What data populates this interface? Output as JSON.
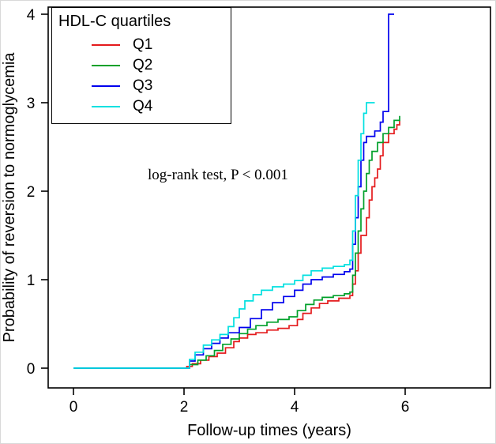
{
  "chart_data": {
    "type": "line",
    "step": true,
    "title": "",
    "xlabel": "Follow-up times (years)",
    "ylabel": "Probability of reversion to normoglycemia",
    "x_ticks": [
      0,
      2,
      4,
      6
    ],
    "y_ticks": [
      0,
      1,
      2,
      3,
      4
    ],
    "xlim": [
      -0.45,
      7.55
    ],
    "ylim": [
      -0.2,
      4.1
    ],
    "grid": false,
    "annotation": "log-rank test, P < 0.001",
    "legend": {
      "title": "HDL-C quartiles",
      "position": "top-left"
    },
    "axis_color": "#000000",
    "series": [
      {
        "name": "Q1",
        "color": "#e41a1c",
        "points": [
          [
            0,
            0
          ],
          [
            2.0,
            0
          ],
          [
            2.05,
            0.02
          ],
          [
            2.15,
            0.05
          ],
          [
            2.3,
            0.09
          ],
          [
            2.45,
            0.13
          ],
          [
            2.6,
            0.17
          ],
          [
            2.75,
            0.23
          ],
          [
            2.9,
            0.3
          ],
          [
            3.0,
            0.34
          ],
          [
            3.15,
            0.38
          ],
          [
            3.3,
            0.4
          ],
          [
            3.5,
            0.43
          ],
          [
            3.7,
            0.45
          ],
          [
            3.9,
            0.48
          ],
          [
            4.05,
            0.55
          ],
          [
            4.15,
            0.62
          ],
          [
            4.3,
            0.68
          ],
          [
            4.45,
            0.73
          ],
          [
            4.6,
            0.76
          ],
          [
            4.8,
            0.79
          ],
          [
            5.0,
            0.82
          ],
          [
            5.05,
            0.95
          ],
          [
            5.1,
            1.1
          ],
          [
            5.15,
            1.3
          ],
          [
            5.2,
            1.5
          ],
          [
            5.3,
            1.7
          ],
          [
            5.35,
            1.9
          ],
          [
            5.4,
            2.05
          ],
          [
            5.45,
            2.15
          ],
          [
            5.5,
            2.25
          ],
          [
            5.55,
            2.4
          ],
          [
            5.6,
            2.55
          ],
          [
            5.7,
            2.65
          ],
          [
            5.8,
            2.7
          ],
          [
            5.85,
            2.75
          ],
          [
            5.9,
            2.8
          ]
        ]
      },
      {
        "name": "Q2",
        "color": "#00a02a",
        "points": [
          [
            0,
            0
          ],
          [
            2.0,
            0
          ],
          [
            2.1,
            0.04
          ],
          [
            2.25,
            0.09
          ],
          [
            2.4,
            0.14
          ],
          [
            2.55,
            0.2
          ],
          [
            2.7,
            0.27
          ],
          [
            2.85,
            0.33
          ],
          [
            3.0,
            0.39
          ],
          [
            3.15,
            0.44
          ],
          [
            3.3,
            0.48
          ],
          [
            3.5,
            0.52
          ],
          [
            3.7,
            0.55
          ],
          [
            3.9,
            0.58
          ],
          [
            4.05,
            0.65
          ],
          [
            4.2,
            0.72
          ],
          [
            4.35,
            0.77
          ],
          [
            4.5,
            0.8
          ],
          [
            4.7,
            0.82
          ],
          [
            4.9,
            0.84
          ],
          [
            5.0,
            0.86
          ],
          [
            5.05,
            1.05
          ],
          [
            5.1,
            1.3
          ],
          [
            5.15,
            1.55
          ],
          [
            5.2,
            1.8
          ],
          [
            5.25,
            2.0
          ],
          [
            5.3,
            2.2
          ],
          [
            5.35,
            2.35
          ],
          [
            5.4,
            2.45
          ],
          [
            5.5,
            2.55
          ],
          [
            5.6,
            2.65
          ],
          [
            5.7,
            2.72
          ],
          [
            5.8,
            2.8
          ],
          [
            5.9,
            2.85
          ]
        ]
      },
      {
        "name": "Q3",
        "color": "#0000ee",
        "points": [
          [
            0,
            0
          ],
          [
            2.0,
            0
          ],
          [
            2.1,
            0.08
          ],
          [
            2.2,
            0.15
          ],
          [
            2.35,
            0.22
          ],
          [
            2.5,
            0.28
          ],
          [
            2.65,
            0.34
          ],
          [
            2.8,
            0.4
          ],
          [
            3.0,
            0.46
          ],
          [
            3.2,
            0.56
          ],
          [
            3.4,
            0.66
          ],
          [
            3.6,
            0.74
          ],
          [
            3.8,
            0.81
          ],
          [
            4.0,
            0.88
          ],
          [
            4.15,
            0.95
          ],
          [
            4.3,
            1.0
          ],
          [
            4.5,
            1.03
          ],
          [
            4.7,
            1.06
          ],
          [
            4.9,
            1.09
          ],
          [
            5.0,
            1.12
          ],
          [
            5.05,
            1.4
          ],
          [
            5.1,
            1.7
          ],
          [
            5.15,
            2.05
          ],
          [
            5.2,
            2.35
          ],
          [
            5.25,
            2.55
          ],
          [
            5.3,
            2.62
          ],
          [
            5.45,
            2.68
          ],
          [
            5.55,
            2.78
          ],
          [
            5.6,
            2.9
          ],
          [
            5.7,
            4.0
          ],
          [
            5.8,
            4.0
          ]
        ]
      },
      {
        "name": "Q4",
        "color": "#00e0e0",
        "points": [
          [
            0,
            0
          ],
          [
            2.0,
            0
          ],
          [
            2.1,
            0.1
          ],
          [
            2.2,
            0.18
          ],
          [
            2.35,
            0.26
          ],
          [
            2.5,
            0.32
          ],
          [
            2.65,
            0.38
          ],
          [
            2.8,
            0.47
          ],
          [
            2.9,
            0.57
          ],
          [
            3.0,
            0.67
          ],
          [
            3.1,
            0.76
          ],
          [
            3.25,
            0.83
          ],
          [
            3.4,
            0.88
          ],
          [
            3.6,
            0.92
          ],
          [
            3.8,
            0.95
          ],
          [
            4.0,
            0.99
          ],
          [
            4.15,
            1.05
          ],
          [
            4.3,
            1.1
          ],
          [
            4.5,
            1.13
          ],
          [
            4.7,
            1.15
          ],
          [
            4.9,
            1.17
          ],
          [
            5.0,
            1.22
          ],
          [
            5.05,
            1.55
          ],
          [
            5.1,
            1.95
          ],
          [
            5.15,
            2.35
          ],
          [
            5.2,
            2.65
          ],
          [
            5.25,
            2.88
          ],
          [
            5.3,
            3.0
          ],
          [
            5.45,
            3.0
          ]
        ]
      }
    ]
  }
}
